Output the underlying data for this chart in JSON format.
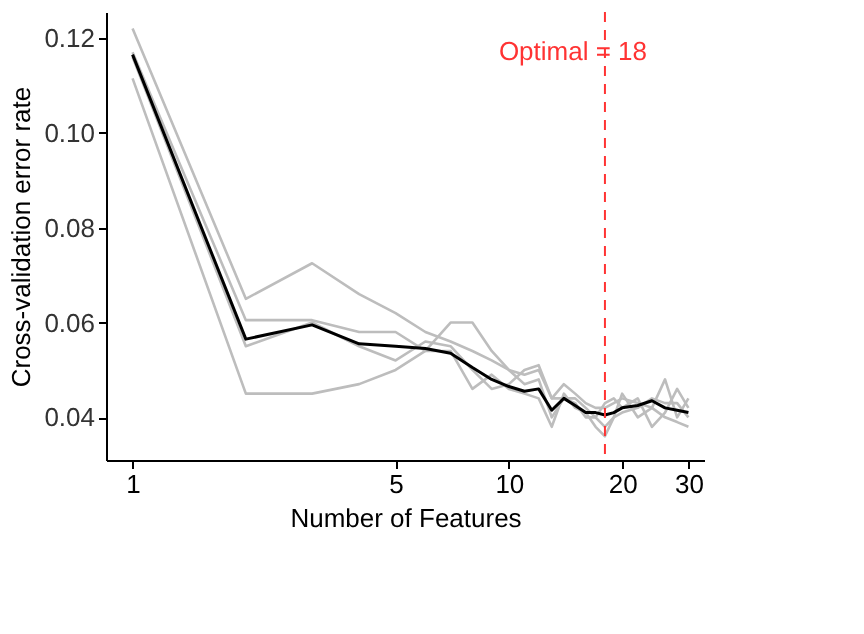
{
  "chart_data": {
    "type": "line",
    "xlabel": "Number of Features",
    "ylabel": "Cross-validation error rate",
    "log": "x",
    "xlim": [
      0.85,
      33
    ],
    "xticks": [
      1,
      5,
      10,
      20,
      30
    ],
    "ylim": [
      0.031,
      0.1255
    ],
    "yticks": [
      {
        "value": 0.04,
        "label": "0.04"
      },
      {
        "value": 0.06,
        "label": "0.06"
      },
      {
        "value": 0.08,
        "label": "0.08"
      },
      {
        "value": 0.1,
        "label": "0.10"
      },
      {
        "value": 0.12,
        "label": "0.12"
      }
    ],
    "grid": false,
    "series": [
      {
        "color": "#bdbdbd",
        "x": [
          1,
          2,
          3,
          4,
          5,
          6,
          7,
          8,
          9,
          10,
          11,
          12,
          13,
          14,
          15,
          16,
          17,
          18,
          19,
          20,
          22,
          24,
          26,
          28,
          30
        ],
        "values": [
          0.122,
          0.065,
          0.0725,
          0.066,
          0.062,
          0.058,
          0.056,
          0.054,
          0.052,
          0.05,
          0.049,
          0.05,
          0.044,
          0.047,
          0.045,
          0.043,
          0.042,
          0.042,
          0.043,
          0.044,
          0.043,
          0.042,
          0.04,
          0.039,
          0.038
        ]
      },
      {
        "color": "#bdbdbd",
        "x": [
          1,
          2,
          3,
          4,
          5,
          6,
          7,
          8,
          9,
          10,
          11,
          12,
          13,
          14,
          15,
          16,
          17,
          18,
          19,
          20,
          22,
          24,
          26,
          28,
          30
        ],
        "values": [
          0.117,
          0.0605,
          0.0605,
          0.058,
          0.058,
          0.054,
          0.06,
          0.06,
          0.054,
          0.05,
          0.047,
          0.048,
          0.04,
          0.044,
          0.044,
          0.042,
          0.04,
          0.038,
          0.04,
          0.045,
          0.04,
          0.042,
          0.048,
          0.04,
          0.044
        ]
      },
      {
        "color": "#bdbdbd",
        "x": [
          1,
          2,
          3,
          4,
          5,
          6,
          7,
          8,
          9,
          10,
          11,
          12,
          13,
          14,
          15,
          16,
          17,
          18,
          19,
          20,
          22,
          24,
          26,
          28,
          30
        ],
        "values": [
          0.116,
          0.055,
          0.06,
          0.055,
          0.052,
          0.056,
          0.055,
          0.05,
          0.046,
          0.047,
          0.05,
          0.051,
          0.044,
          0.044,
          0.043,
          0.04,
          0.04,
          0.043,
          0.044,
          0.042,
          0.044,
          0.038,
          0.041,
          0.046,
          0.042
        ]
      },
      {
        "color": "#bdbdbd",
        "x": [
          1,
          2,
          3,
          4,
          5,
          6,
          7,
          8,
          9,
          10,
          11,
          12,
          13,
          14,
          15,
          16,
          17,
          18,
          19,
          20,
          22,
          24,
          26,
          28,
          30
        ],
        "values": [
          0.1115,
          0.045,
          0.045,
          0.047,
          0.05,
          0.054,
          0.054,
          0.046,
          0.049,
          0.046,
          0.045,
          0.044,
          0.038,
          0.045,
          0.042,
          0.041,
          0.038,
          0.036,
          0.04,
          0.041,
          0.042,
          0.044,
          0.043,
          0.043,
          0.04
        ]
      },
      {
        "color": "#000000",
        "x": [
          1,
          2,
          3,
          4,
          5,
          6,
          7,
          8,
          9,
          10,
          11,
          12,
          13,
          14,
          15,
          16,
          17,
          18,
          19,
          20,
          22,
          24,
          26,
          28,
          30
        ],
        "values": [
          0.1165,
          0.0565,
          0.0595,
          0.0555,
          0.055,
          0.0545,
          0.0535,
          0.0505,
          0.048,
          0.0465,
          0.0455,
          0.046,
          0.0415,
          0.044,
          0.0425,
          0.041,
          0.041,
          0.0405,
          0.041,
          0.042,
          0.0425,
          0.0435,
          0.042,
          0.0415,
          0.041
        ]
      }
    ],
    "ref_lines": [
      {
        "axis": "x",
        "value": 18,
        "label": "Optimal = 18",
        "color": "#ff3333",
        "line_style": "dashed"
      }
    ]
  }
}
